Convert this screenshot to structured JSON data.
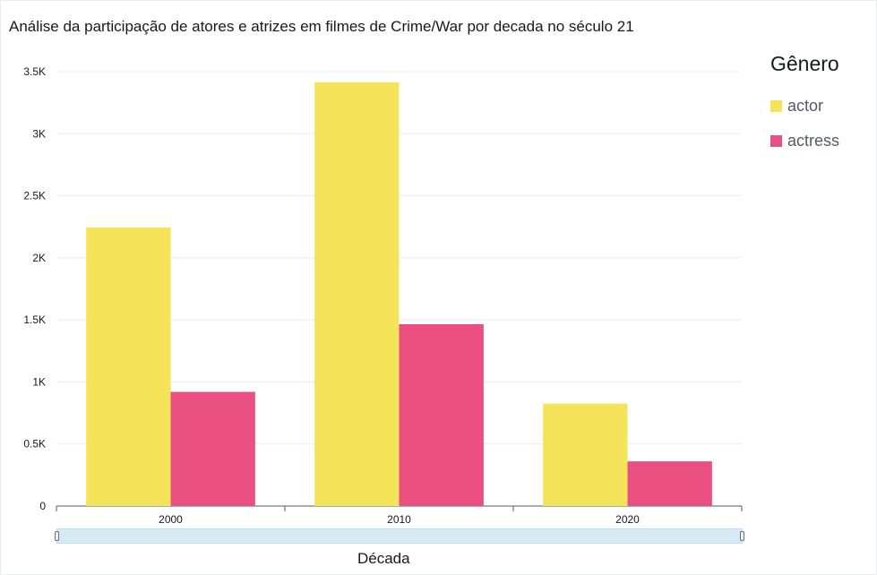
{
  "title": "Análise da participação de atores e atrizes em filmes de Crime/War por decada no século 21",
  "legend": {
    "title": "Gênero",
    "items": [
      {
        "label": "actor",
        "color": "#f5e35a"
      },
      {
        "label": "actress",
        "color": "#e94f80"
      }
    ]
  },
  "chart_data": {
    "type": "bar",
    "title": "Análise da participação de atores e atrizes em filmes de Crime/War por decada no século 21",
    "xlabel": "Década",
    "ylabel": "",
    "categories": [
      "2000",
      "2010",
      "2020"
    ],
    "series": [
      {
        "name": "actor",
        "values": [
          2245,
          3415,
          825
        ],
        "color": "#f5e35a"
      },
      {
        "name": "actress",
        "values": [
          920,
          1465,
          360
        ],
        "color": "#e94f80"
      }
    ],
    "ylim": [
      0,
      3500
    ],
    "yticks": [
      {
        "value": 0,
        "label": "0"
      },
      {
        "value": 500,
        "label": "0.5K"
      },
      {
        "value": 1000,
        "label": "1K"
      },
      {
        "value": 1500,
        "label": "1.5K"
      },
      {
        "value": 2000,
        "label": "2K"
      },
      {
        "value": 2500,
        "label": "2.5K"
      },
      {
        "value": 3000,
        "label": "3K"
      },
      {
        "value": 3500,
        "label": "3.5K"
      }
    ],
    "grid": true,
    "legend_position": "right"
  }
}
